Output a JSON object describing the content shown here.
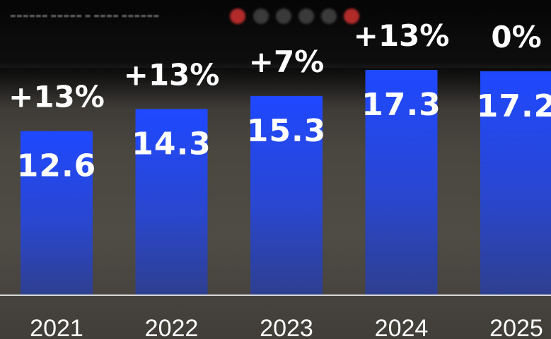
{
  "chart_data": {
    "type": "bar",
    "title": "",
    "xlabel": "",
    "ylabel": "",
    "categories": [
      "2021",
      "2022",
      "2023",
      "2024",
      "2025"
    ],
    "values": [
      12.6,
      14.3,
      15.3,
      17.3,
      17.2
    ],
    "value_labels": [
      "12.6",
      "14.3",
      "15.3",
      "17.3",
      "17.2"
    ],
    "growth_labels": [
      "+13%",
      "+13%",
      "+7%",
      "+13%",
      "0%"
    ],
    "ylim": [
      0,
      17.3
    ],
    "grid": false,
    "legend": "none",
    "colors": {
      "bar_top": "#1f48ff",
      "bar_bottom": "#2e3f8f",
      "text": "#ffffff",
      "baseline": "#d9d9d9"
    }
  }
}
